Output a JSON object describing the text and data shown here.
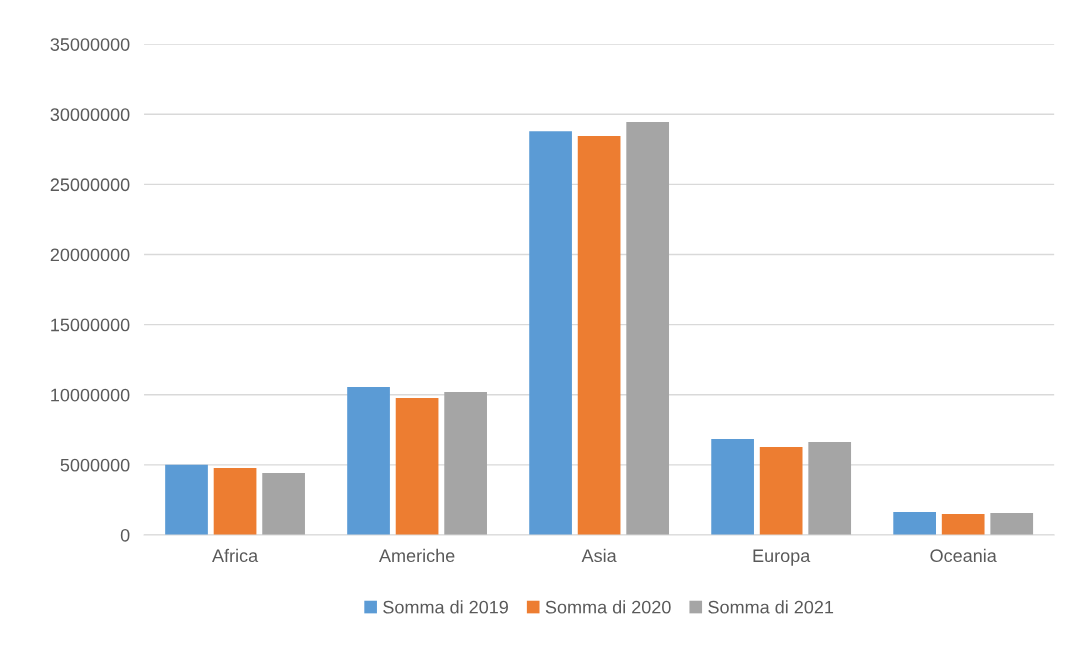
{
  "chart_data": {
    "type": "bar",
    "categories": [
      "Africa",
      "Americhe",
      "Asia",
      "Europa",
      "Oceania"
    ],
    "series": [
      {
        "name": "Somma di 2019",
        "color": "#5b9bd5",
        "values": [
          5000000,
          10550000,
          28800000,
          6850000,
          1640000
        ]
      },
      {
        "name": "Somma di 2020",
        "color": "#ed7d31",
        "values": [
          4780000,
          9770000,
          28450000,
          6280000,
          1500000
        ]
      },
      {
        "name": "Somma di 2021",
        "color": "#a5a5a5",
        "values": [
          4420000,
          10200000,
          29450000,
          6630000,
          1570000
        ]
      }
    ],
    "ylim": [
      0,
      35000000
    ],
    "yticks": [
      0,
      5000000,
      10000000,
      15000000,
      20000000,
      25000000,
      30000000,
      35000000
    ],
    "grid": "y",
    "legend": "bottom"
  }
}
